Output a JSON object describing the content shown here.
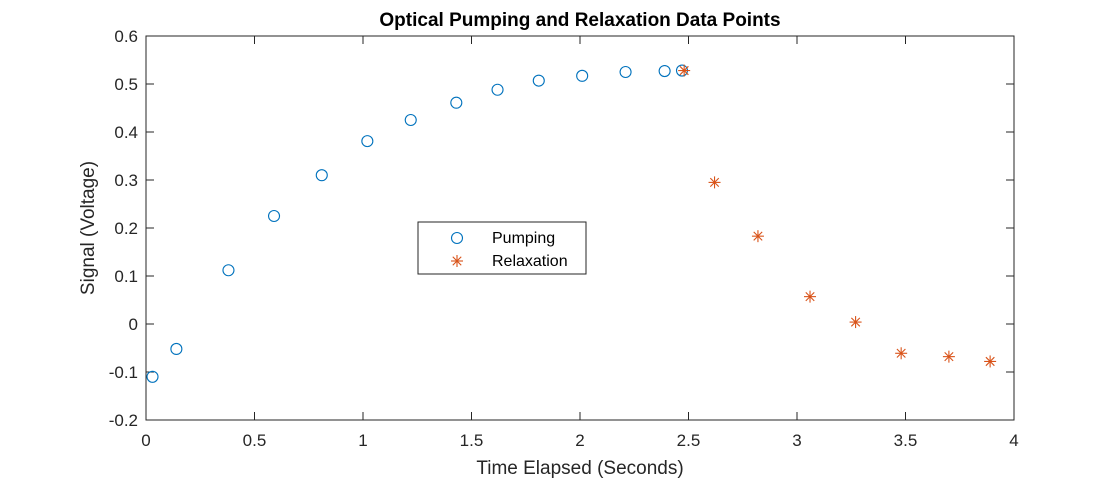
{
  "chart_data": {
    "type": "scatter",
    "title": "Optical Pumping and Relaxation Data Points",
    "xlabel": "Time Elapsed (Seconds)",
    "ylabel": "Signal (Voltage)",
    "xlim": [
      0,
      4
    ],
    "ylim": [
      -0.2,
      0.6
    ],
    "xticks": [
      0,
      0.5,
      1,
      1.5,
      2,
      2.5,
      3,
      3.5,
      4
    ],
    "xtick_labels": [
      "0",
      "0.5",
      "1",
      "1.5",
      "2",
      "2.5",
      "3",
      "3.5",
      "4"
    ],
    "yticks": [
      -0.2,
      -0.1,
      0,
      0.1,
      0.2,
      0.3,
      0.4,
      0.5,
      0.6
    ],
    "ytick_labels": [
      "-0.2",
      "-0.1",
      "0",
      "0.1",
      "0.2",
      "0.3",
      "0.4",
      "0.5",
      "0.6"
    ],
    "grid": false,
    "legend_position": "center",
    "series": [
      {
        "name": "Pumping",
        "marker": "circle",
        "color": "#0072BD",
        "x": [
          0.03,
          0.14,
          0.38,
          0.59,
          0.81,
          1.02,
          1.22,
          1.43,
          1.62,
          1.81,
          2.01,
          2.21,
          2.39,
          2.47
        ],
        "y": [
          -0.11,
          -0.052,
          0.112,
          0.225,
          0.31,
          0.381,
          0.425,
          0.461,
          0.488,
          0.507,
          0.517,
          0.525,
          0.527,
          0.528
        ]
      },
      {
        "name": "Relaxation",
        "marker": "asterisk",
        "color": "#D95319",
        "x": [
          2.48,
          2.62,
          2.82,
          3.06,
          3.27,
          3.48,
          3.7,
          3.89
        ],
        "y": [
          0.528,
          0.295,
          0.183,
          0.057,
          0.004,
          -0.061,
          -0.068,
          -0.078
        ]
      }
    ]
  }
}
